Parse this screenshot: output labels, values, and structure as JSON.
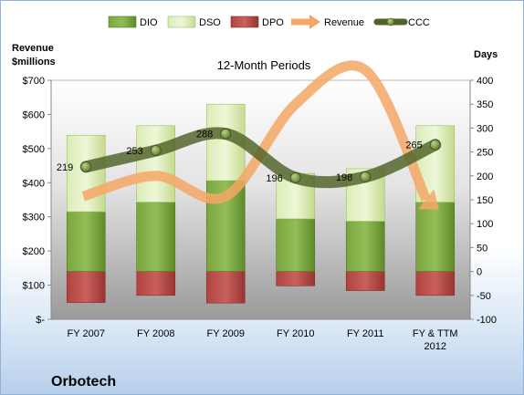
{
  "chart_data": {
    "type": "bar",
    "subtitle": "12-Month Periods",
    "company": "Orbotech",
    "y_left_label": [
      "Revenue",
      "$millions"
    ],
    "y_right_label": "Days",
    "y_left_ticks": [
      "$-",
      "$100",
      "$200",
      "$300",
      "$400",
      "$500",
      "$600",
      "$700"
    ],
    "y_right_ticks": [
      "-100",
      "-50",
      "0",
      "50",
      "100",
      "150",
      "200",
      "250",
      "300",
      "350",
      "400"
    ],
    "y_left_range": [
      0,
      700
    ],
    "y_right_range": [
      -100,
      400
    ],
    "categories": [
      "FY 2007",
      "FY 2008",
      "FY 2009",
      "FY 2010",
      "FY 2011",
      "FY & TTM 2012"
    ],
    "legend": [
      "DIO",
      "DSO",
      "DPO",
      "Revenue",
      "CCC"
    ],
    "series": [
      {
        "name": "DIO",
        "axis": "right",
        "values": [
          125,
          145,
          190,
          110,
          105,
          145
        ]
      },
      {
        "name": "DSO",
        "axis": "right",
        "values": [
          160,
          160,
          160,
          95,
          110,
          160
        ]
      },
      {
        "name": "DPO",
        "axis": "right",
        "values": [
          -65,
          -50,
          -66,
          -30,
          -40,
          -50
        ]
      },
      {
        "name": "Revenue",
        "axis": "left",
        "values": [
          360,
          420,
          360,
          630,
          730,
          330
        ]
      },
      {
        "name": "CCC",
        "axis": "right",
        "values": [
          219,
          253,
          288,
          196,
          198,
          265
        ]
      }
    ],
    "ccc_labels": [
      "219",
      "253",
      "288",
      "196",
      "198",
      "265"
    ],
    "colors": {
      "DIO": "#6f9a37",
      "DSO": "#cfe3a2",
      "DPO": "#c0504d",
      "Revenue": "#f4a766",
      "CCC": "#4f6228"
    },
    "legend_placement": "top",
    "grid": false
  }
}
